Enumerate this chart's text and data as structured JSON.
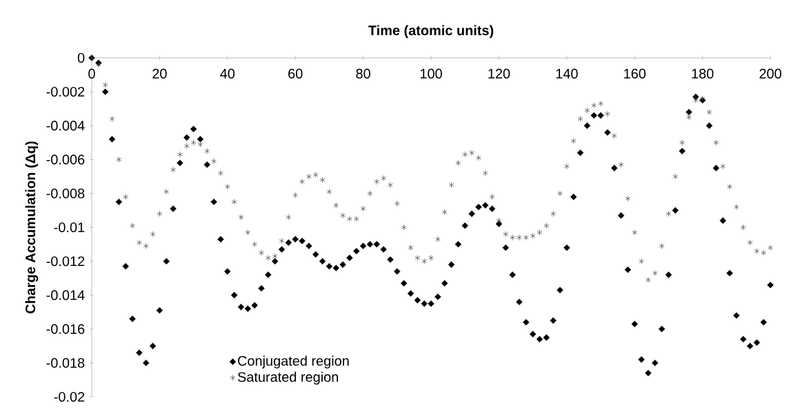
{
  "chart_data": {
    "type": "scatter",
    "xlabel": "Time (atomic units)",
    "ylabel": "Charge Accumulation (Δq)",
    "x": [
      0,
      2,
      4,
      6,
      8,
      10,
      12,
      14,
      16,
      18,
      20,
      22,
      24,
      26,
      28,
      30,
      32,
      34,
      36,
      38,
      40,
      42,
      44,
      46,
      48,
      50,
      52,
      54,
      56,
      58,
      60,
      62,
      64,
      66,
      68,
      70,
      72,
      74,
      76,
      78,
      80,
      82,
      84,
      86,
      88,
      90,
      92,
      94,
      96,
      98,
      100,
      102,
      104,
      106,
      108,
      110,
      112,
      114,
      116,
      118,
      120,
      122,
      124,
      126,
      128,
      130,
      132,
      134,
      136,
      138,
      140,
      142,
      144,
      146,
      148,
      150,
      152,
      154,
      156,
      158,
      160,
      162,
      164,
      166,
      168,
      170,
      172,
      174,
      176,
      178,
      180,
      182,
      184,
      186,
      188,
      190,
      192,
      194,
      196,
      198,
      200
    ],
    "series": [
      {
        "name": "Conjugated region",
        "color": "#000000",
        "marker": "diamond",
        "values": [
          0,
          -0.0003,
          -0.002,
          -0.0048,
          -0.0085,
          -0.0123,
          -0.0154,
          -0.0174,
          -0.018,
          -0.017,
          -0.0149,
          -0.012,
          -0.0089,
          -0.0062,
          -0.0047,
          -0.0042,
          -0.0048,
          -0.0063,
          -0.0085,
          -0.0107,
          -0.0126,
          -0.014,
          -0.0147,
          -0.0148,
          -0.0146,
          -0.0136,
          -0.0128,
          -0.012,
          -0.0113,
          -0.0109,
          -0.0107,
          -0.0108,
          -0.0111,
          -0.0116,
          -0.012,
          -0.0123,
          -0.0124,
          -0.0122,
          -0.0118,
          -0.0114,
          -0.0111,
          -0.011,
          -0.011,
          -0.0113,
          -0.0119,
          -0.0126,
          -0.0133,
          -0.0139,
          -0.0143,
          -0.0145,
          -0.0145,
          -0.0141,
          -0.0133,
          -0.0122,
          -0.011,
          -0.0099,
          -0.0092,
          -0.0088,
          -0.0087,
          -0.0089,
          -0.0098,
          -0.0112,
          -0.0128,
          -0.0144,
          -0.0156,
          -0.0163,
          -0.0166,
          -0.0165,
          -0.0155,
          -0.0137,
          -0.0112,
          -0.0082,
          -0.0056,
          -0.004,
          -0.0034,
          -0.0034,
          -0.0044,
          -0.0065,
          -0.0093,
          -0.0125,
          -0.0157,
          -0.0178,
          -0.0186,
          -0.018,
          -0.016,
          -0.0128,
          -0.009,
          -0.0055,
          -0.0032,
          -0.0023,
          -0.0025,
          -0.004,
          -0.0065,
          -0.0096,
          -0.0127,
          -0.0152,
          -0.0166,
          -0.017,
          -0.0168,
          -0.0156,
          -0.0134
        ]
      },
      {
        "name": "Saturated region",
        "color": "#404040",
        "marker": "cross",
        "values": [
          0,
          -0.0004,
          -0.0016,
          -0.0036,
          -0.006,
          -0.0082,
          -0.0099,
          -0.0109,
          -0.0111,
          -0.0104,
          -0.0092,
          -0.0079,
          -0.0066,
          -0.0057,
          -0.0052,
          -0.005,
          -0.0051,
          -0.0055,
          -0.0061,
          -0.0068,
          -0.0076,
          -0.0085,
          -0.0094,
          -0.0103,
          -0.011,
          -0.0115,
          -0.0118,
          -0.0117,
          -0.0108,
          -0.0094,
          -0.0081,
          -0.0073,
          -0.007,
          -0.0069,
          -0.0072,
          -0.0079,
          -0.0087,
          -0.0093,
          -0.0095,
          -0.0095,
          -0.0089,
          -0.008,
          -0.0073,
          -0.0071,
          -0.0075,
          -0.0086,
          -0.01,
          -0.0112,
          -0.0118,
          -0.012,
          -0.0118,
          -0.0107,
          -0.0091,
          -0.0075,
          -0.0062,
          -0.0057,
          -0.0056,
          -0.0059,
          -0.0068,
          -0.0082,
          -0.0096,
          -0.0104,
          -0.0106,
          -0.0106,
          -0.0106,
          -0.0105,
          -0.0103,
          -0.0099,
          -0.0092,
          -0.008,
          -0.0064,
          -0.0049,
          -0.0036,
          -0.0031,
          -0.0028,
          -0.0027,
          -0.0033,
          -0.0046,
          -0.0063,
          -0.0083,
          -0.0103,
          -0.012,
          -0.0131,
          -0.0127,
          -0.0111,
          -0.0092,
          -0.007,
          -0.005,
          -0.0035,
          -0.0025,
          -0.0024,
          -0.0032,
          -0.005,
          -0.0064,
          -0.0076,
          -0.0088,
          -0.01,
          -0.0109,
          -0.0114,
          -0.0115,
          -0.0112
        ]
      }
    ],
    "xlim": [
      0,
      200
    ],
    "xticks": [
      0,
      20,
      40,
      60,
      80,
      100,
      120,
      140,
      160,
      180,
      200
    ],
    "ylim": [
      -0.02,
      0
    ],
    "yticks": [
      -0.02,
      -0.018,
      -0.016,
      -0.014,
      -0.012,
      -0.01,
      -0.008,
      -0.006,
      -0.004,
      -0.002,
      0
    ],
    "grid": false,
    "legend": "bottom left"
  }
}
